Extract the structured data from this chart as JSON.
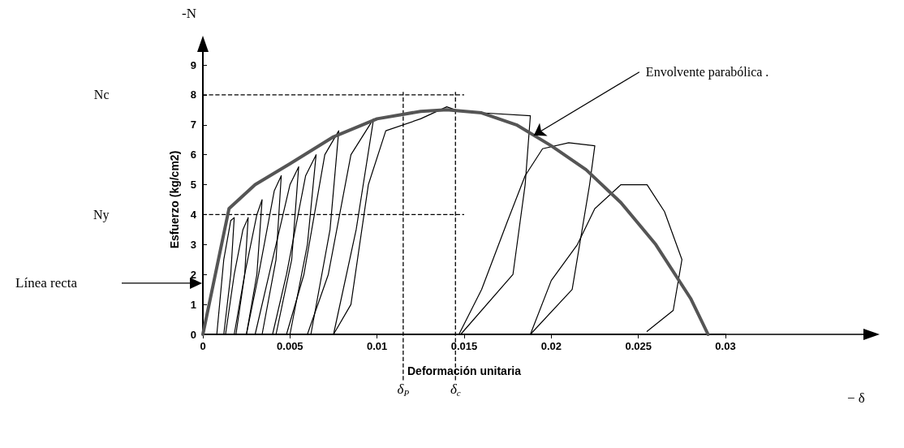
{
  "chart_data": {
    "type": "line",
    "xlabel": "Deformación unitaria",
    "ylabel": "Esfuerzo (kg/cm2)",
    "xlim": [
      0,
      0.03
    ],
    "xticks": [
      0,
      0.005,
      0.01,
      0.015,
      0.02,
      0.025,
      0.03
    ],
    "ylim": [
      0,
      9
    ],
    "yticks": [
      0,
      1,
      2,
      3,
      4,
      5,
      6,
      7,
      8,
      9
    ],
    "marker": "none",
    "line_style": "solid",
    "series": [
      {
        "color": "#555555",
        "x": [
          0,
          0.0015,
          0.003,
          0.005,
          0.0075,
          0.01,
          0.0125,
          0.014,
          0.016,
          0.018,
          0.02,
          0.022,
          0.024,
          0.026,
          0.028,
          0.029
        ],
        "values": [
          0,
          4.2,
          5.0,
          5.7,
          6.6,
          7.2,
          7.45,
          7.5,
          7.4,
          7.0,
          6.3,
          5.5,
          4.4,
          3.0,
          1.2,
          0
        ]
      },
      {
        "color": "#000000",
        "x": [
          0.0008,
          0.0012,
          0.0016,
          0.0018,
          0.0016,
          0.0012
        ],
        "values": [
          0,
          2.5,
          3.8,
          3.9,
          2,
          0
        ]
      },
      {
        "color": "#000000",
        "x": [
          0.0013,
          0.0018,
          0.0023,
          0.0026,
          0.0024,
          0.0019
        ],
        "values": [
          0,
          2,
          3.5,
          3.9,
          2,
          0
        ]
      },
      {
        "color": "#000000",
        "x": [
          0.0018,
          0.0024,
          0.0031,
          0.0034,
          0.0031,
          0.0025
        ],
        "values": [
          0,
          2,
          4,
          4.5,
          2,
          0
        ]
      },
      {
        "color": "#000000",
        "x": [
          0.0025,
          0.0032,
          0.0041,
          0.0045,
          0.0042,
          0.0034
        ],
        "values": [
          0,
          2,
          4.8,
          5.3,
          2.5,
          0
        ]
      },
      {
        "color": "#000000",
        "x": [
          0.003,
          0.0038,
          0.005,
          0.0055,
          0.0051,
          0.0042
        ],
        "values": [
          0,
          2,
          5.0,
          5.6,
          2.5,
          0
        ]
      },
      {
        "color": "#000000",
        "x": [
          0.004,
          0.0048,
          0.0059,
          0.0065,
          0.006,
          0.005
        ],
        "values": [
          0,
          2,
          5.3,
          6.0,
          3,
          0
        ]
      },
      {
        "color": "#000000",
        "x": [
          0.0048,
          0.0058,
          0.007,
          0.0078,
          0.0073,
          0.0062
        ],
        "values": [
          0,
          2,
          6.0,
          6.8,
          3.5,
          0
        ]
      },
      {
        "color": "#000000",
        "x": [
          0.006,
          0.0072,
          0.0085,
          0.0098,
          0.0088,
          0.0075
        ],
        "values": [
          0,
          2,
          6.0,
          7.2,
          3.5,
          0
        ]
      },
      {
        "color": "#000000",
        "x": [
          0.0075,
          0.0085,
          0.0095,
          0.0105,
          0.0125,
          0.014,
          0.0145,
          0.016,
          0.0188,
          0.0185,
          0.0178,
          0.0148
        ],
        "values": [
          0,
          1,
          5,
          6.8,
          7.2,
          7.6,
          7.5,
          7.4,
          7.3,
          5,
          2,
          0
        ]
      },
      {
        "color": "#000000",
        "x": [
          0.0147,
          0.016,
          0.0175,
          0.0185,
          0.0195,
          0.021,
          0.0225,
          0.0222,
          0.0212,
          0.0188
        ],
        "values": [
          0,
          1.5,
          3.8,
          5.3,
          6.2,
          6.4,
          6.3,
          5,
          1.5,
          0
        ]
      },
      {
        "color": "#000000",
        "x": [
          0.0188,
          0.02,
          0.0215,
          0.0225,
          0.024,
          0.0255,
          0.0265,
          0.0275,
          0.027,
          0.0255
        ],
        "values": [
          0,
          1.8,
          3.0,
          4.2,
          5.0,
          5.0,
          4.1,
          2.5,
          0.8,
          0.1
        ]
      }
    ],
    "ref_lines": [
      {
        "axis": "y",
        "value": 8,
        "label": "Nc",
        "line_style": "dashed",
        "color": "#000000"
      },
      {
        "axis": "y",
        "value": 4,
        "label": "Ny",
        "line_style": "dashed",
        "color": "#000000"
      },
      {
        "axis": "x",
        "value": 0.0115,
        "label": "δ$_{P}$",
        "line_style": "dashed",
        "color": "#000000"
      },
      {
        "axis": "x",
        "value": 0.0145,
        "label": "δ$_{c}$",
        "line_style": "dashed",
        "color": "#000000"
      }
    ],
    "annotations": [
      "-N",
      "− δ",
      {
        "text": "Envolvente parabólica .",
        "x": 0.019,
        "y": 6.65
      },
      "Línea recta"
    ]
  }
}
